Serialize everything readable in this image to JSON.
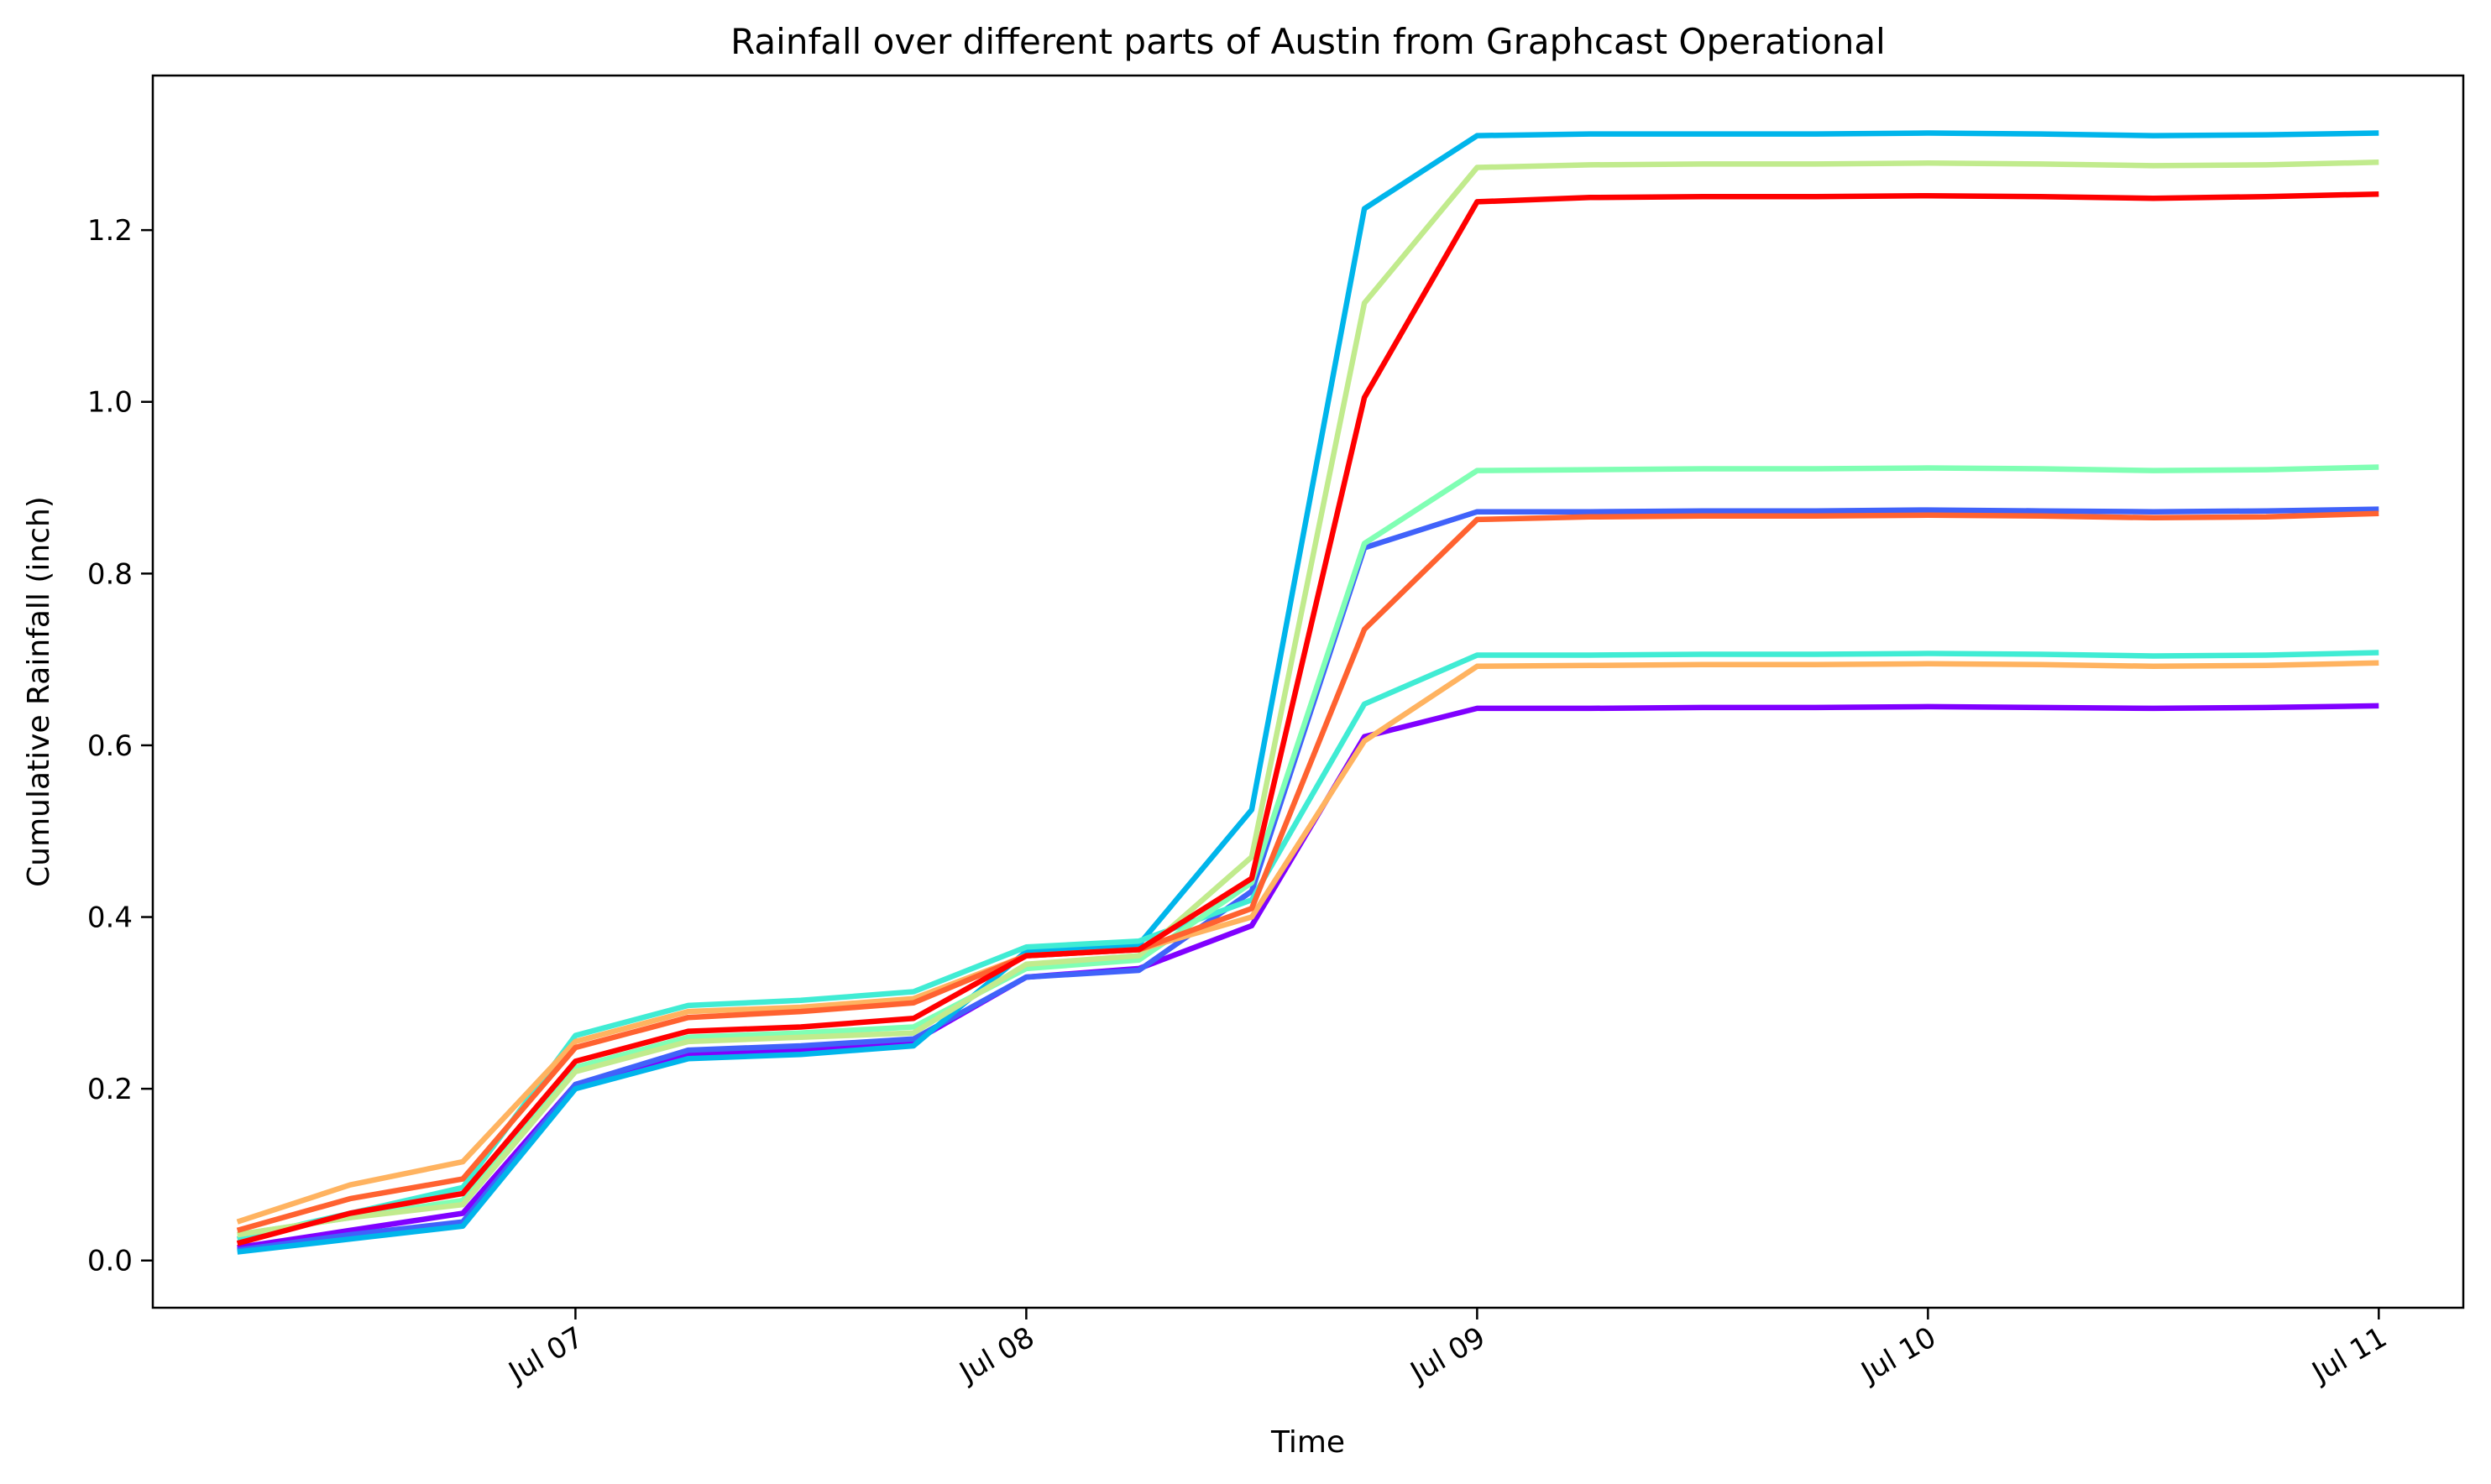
{
  "chart_data": {
    "type": "line",
    "title": "Rainfall over different parts of Austin from Graphcast Operational",
    "xlabel": "Time",
    "ylabel": "Cumulative Rainfall (inch)",
    "x": [
      "Jul 06 06:00",
      "Jul 06 12:00",
      "Jul 06 18:00",
      "Jul 07 00:00",
      "Jul 07 06:00",
      "Jul 07 12:00",
      "Jul 07 18:00",
      "Jul 08 00:00",
      "Jul 08 06:00",
      "Jul 08 12:00",
      "Jul 08 18:00",
      "Jul 09 00:00",
      "Jul 09 06:00",
      "Jul 09 12:00",
      "Jul 09 18:00",
      "Jul 10 00:00",
      "Jul 10 06:00",
      "Jul 10 12:00",
      "Jul 10 18:00",
      "Jul 11 00:00"
    ],
    "x_ticks": [
      "Jul 07",
      "Jul 08",
      "Jul 09",
      "Jul 10",
      "Jul 11"
    ],
    "y_ticks": [
      "0.0",
      "0.2",
      "0.4",
      "0.6",
      "0.8",
      "1.0",
      "1.2"
    ],
    "xlim": [
      "Jul 06 01:30",
      "Jul 11 04:30"
    ],
    "ylim": [
      -0.055,
      1.38
    ],
    "grid": false,
    "series": [
      {
        "color": "#8000ff",
        "values": [
          0.015,
          0.035,
          0.055,
          0.205,
          0.24,
          0.245,
          0.255,
          0.33,
          0.34,
          0.39,
          0.61,
          0.643,
          0.643,
          0.644,
          0.644,
          0.645,
          0.644,
          0.643,
          0.644,
          0.646
        ]
      },
      {
        "color": "#4062fa",
        "values": [
          0.012,
          0.03,
          0.045,
          0.205,
          0.245,
          0.25,
          0.258,
          0.33,
          0.338,
          0.43,
          0.83,
          0.872,
          0.872,
          0.873,
          0.873,
          0.874,
          0.873,
          0.872,
          0.873,
          0.875
        ]
      },
      {
        "color": "#00b5eb",
        "values": [
          0.01,
          0.025,
          0.04,
          0.2,
          0.235,
          0.24,
          0.25,
          0.36,
          0.368,
          0.525,
          1.225,
          1.31,
          1.312,
          1.312,
          1.312,
          1.313,
          1.312,
          1.31,
          1.311,
          1.313
        ]
      },
      {
        "color": "#40ecd4",
        "values": [
          0.025,
          0.055,
          0.085,
          0.262,
          0.297,
          0.303,
          0.313,
          0.365,
          0.372,
          0.42,
          0.648,
          0.705,
          0.705,
          0.706,
          0.706,
          0.707,
          0.706,
          0.704,
          0.705,
          0.708
        ]
      },
      {
        "color": "#80ffb4",
        "values": [
          0.03,
          0.05,
          0.07,
          0.225,
          0.26,
          0.265,
          0.272,
          0.34,
          0.35,
          0.44,
          0.835,
          0.92,
          0.921,
          0.922,
          0.922,
          0.923,
          0.922,
          0.92,
          0.921,
          0.924
        ]
      },
      {
        "color": "#c1eb8d",
        "values": [
          0.03,
          0.05,
          0.065,
          0.22,
          0.255,
          0.26,
          0.265,
          0.345,
          0.355,
          0.47,
          1.115,
          1.273,
          1.276,
          1.277,
          1.277,
          1.278,
          1.277,
          1.275,
          1.276,
          1.279
        ]
      },
      {
        "color": "#ffb360",
        "values": [
          0.045,
          0.088,
          0.115,
          0.255,
          0.29,
          0.295,
          0.305,
          0.355,
          0.362,
          0.4,
          0.605,
          0.692,
          0.693,
          0.694,
          0.694,
          0.695,
          0.694,
          0.692,
          0.693,
          0.696
        ]
      },
      {
        "color": "#ff6230",
        "values": [
          0.035,
          0.072,
          0.095,
          0.248,
          0.283,
          0.29,
          0.3,
          0.355,
          0.362,
          0.41,
          0.735,
          0.863,
          0.866,
          0.867,
          0.867,
          0.868,
          0.867,
          0.865,
          0.866,
          0.87
        ]
      },
      {
        "color": "#ff0000",
        "values": [
          0.02,
          0.055,
          0.078,
          0.232,
          0.267,
          0.272,
          0.282,
          0.355,
          0.362,
          0.445,
          1.005,
          1.233,
          1.238,
          1.239,
          1.239,
          1.24,
          1.239,
          1.237,
          1.239,
          1.242
        ]
      }
    ]
  }
}
